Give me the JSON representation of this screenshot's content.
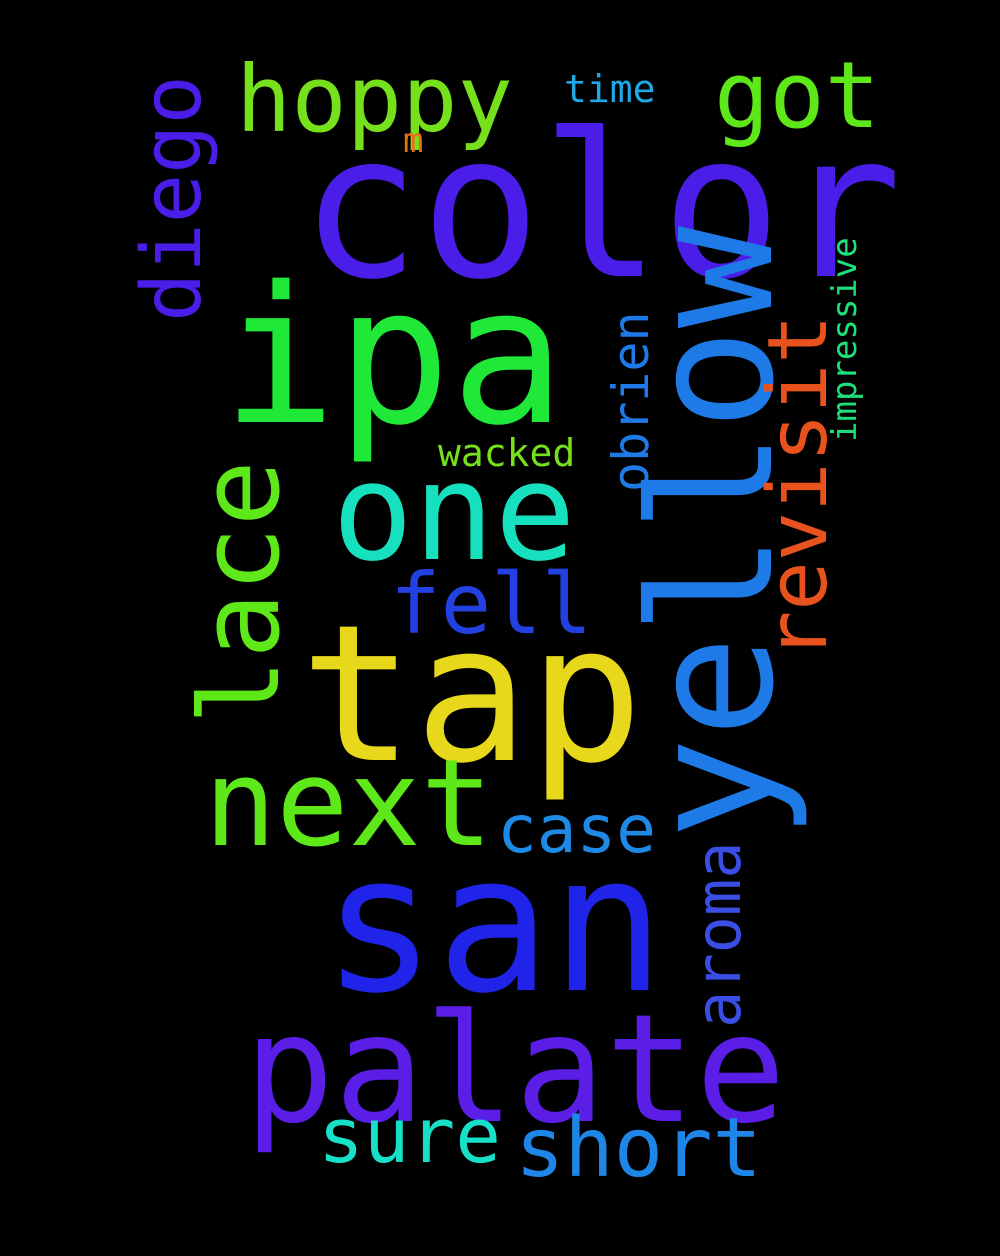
{
  "background": "#000000",
  "words": [
    {
      "key": "color",
      "text": "color",
      "color": "#4a1de8",
      "orientation": "horizontal"
    },
    {
      "key": "ipa",
      "text": "ipa",
      "color": "#1fe838",
      "orientation": "horizontal"
    },
    {
      "key": "tap",
      "text": "tap",
      "color": "#e8d81b",
      "orientation": "horizontal"
    },
    {
      "key": "san",
      "text": "san",
      "color": "#1f24e8",
      "orientation": "horizontal"
    },
    {
      "key": "palate",
      "text": "palate",
      "color": "#5a1ee6",
      "orientation": "horizontal"
    },
    {
      "key": "one",
      "text": "one",
      "color": "#16e0bd",
      "orientation": "horizontal"
    },
    {
      "key": "next",
      "text": "next",
      "color": "#5ee81a",
      "orientation": "horizontal"
    },
    {
      "key": "yellow",
      "text": "yellow",
      "color": "#1e7ae6",
      "orientation": "vertical"
    },
    {
      "key": "lace",
      "text": "lace",
      "color": "#5ee81a",
      "orientation": "vertical"
    },
    {
      "key": "hoppy",
      "text": "hoppy",
      "color": "#77e01c",
      "orientation": "horizontal"
    },
    {
      "key": "got",
      "text": "got",
      "color": "#5ee81a",
      "orientation": "horizontal"
    },
    {
      "key": "diego",
      "text": "diego",
      "color": "#4a1de8",
      "orientation": "vertical"
    },
    {
      "key": "revisit",
      "text": "revisit",
      "color": "#e8521c",
      "orientation": "vertical"
    },
    {
      "key": "fell",
      "text": "fell",
      "color": "#2341e0",
      "orientation": "horizontal"
    },
    {
      "key": "case",
      "text": "case",
      "color": "#1e8ae6",
      "orientation": "horizontal"
    },
    {
      "key": "aroma",
      "text": "aroma",
      "color": "#3a4ee6",
      "orientation": "vertical"
    },
    {
      "key": "obrien",
      "text": "obrien",
      "color": "#1e7ae6",
      "orientation": "vertical"
    },
    {
      "key": "sure",
      "text": "sure",
      "color": "#18e0c8",
      "orientation": "horizontal"
    },
    {
      "key": "short",
      "text": "short",
      "color": "#1e86e6",
      "orientation": "horizontal"
    },
    {
      "key": "wacked",
      "text": "wacked",
      "color": "#77e01c",
      "orientation": "horizontal"
    },
    {
      "key": "time",
      "text": "time",
      "color": "#1ea8e6",
      "orientation": "horizontal"
    },
    {
      "key": "impressive",
      "text": "impressive",
      "color": "#1ee07a",
      "orientation": "vertical"
    },
    {
      "key": "m",
      "text": "m",
      "color": "#e8701c",
      "orientation": "horizontal"
    }
  ]
}
